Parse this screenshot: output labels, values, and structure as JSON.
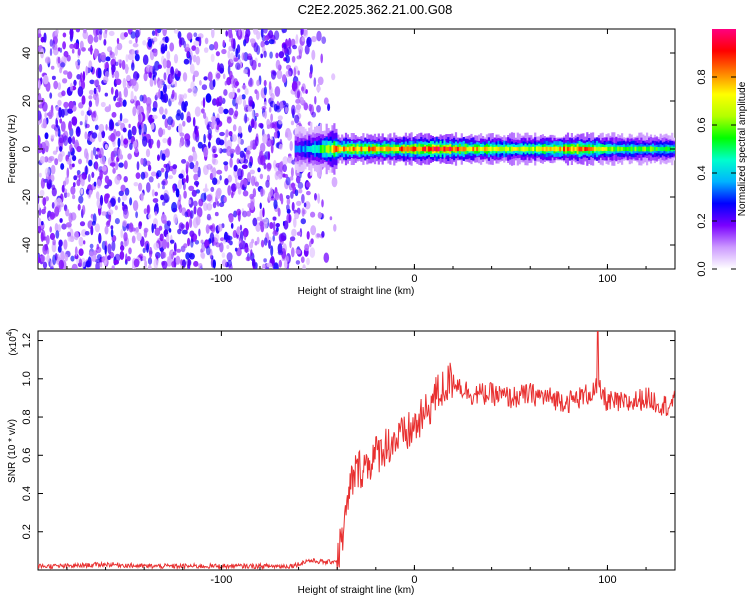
{
  "title": "C2E2.2025.362.21.00.G08",
  "chart_data": [
    {
      "type": "heatmap",
      "xlabel": "Height of straight line (km)",
      "ylabel": "Frequency (Hz)",
      "xlim": [
        -195,
        135
      ],
      "ylim": [
        -50,
        50
      ],
      "xticks": [
        -100,
        0,
        100
      ],
      "yticks": [
        -40,
        -20,
        0,
        20,
        40
      ],
      "colorbar": {
        "label": "Normalized spectral amplitude",
        "range": [
          0,
          1
        ],
        "ticks": [
          "0.0",
          "0.2",
          "0.4",
          "0.6",
          "0.8"
        ],
        "colors": [
          "#ffffff",
          "#cc99ff",
          "#7a00ff",
          "#0000ff",
          "#00b3ff",
          "#00ffcc",
          "#00ff00",
          "#b3ff00",
          "#ffff00",
          "#ff8000",
          "#ff0000",
          "#ff0080"
        ]
      },
      "noise_region_x": [
        -195,
        -50
      ],
      "signal_band": [
        {
          "x": -62,
          "amp": 0.3
        },
        {
          "x": -50,
          "amp": 0.45
        },
        {
          "x": -40,
          "amp": 0.8
        },
        {
          "x": -30,
          "amp": 0.8
        },
        {
          "x": -20,
          "amp": 0.8
        },
        {
          "x": -10,
          "amp": 0.78
        },
        {
          "x": 0,
          "amp": 0.85
        },
        {
          "x": 10,
          "amp": 0.95
        },
        {
          "x": 20,
          "amp": 0.85
        },
        {
          "x": 30,
          "amp": 0.75
        },
        {
          "x": 40,
          "amp": 0.7
        },
        {
          "x": 60,
          "amp": 0.65
        },
        {
          "x": 80,
          "amp": 0.8
        },
        {
          "x": 90,
          "amp": 0.85
        },
        {
          "x": 100,
          "amp": 0.6
        },
        {
          "x": 120,
          "amp": 0.55
        },
        {
          "x": 135,
          "amp": 0.5
        }
      ]
    },
    {
      "type": "line",
      "xlabel": "Height of straight line (km)",
      "ylabel": "SNR (10 * v/v)",
      "multiplier": "(x10",
      "multiplier_exp": "4",
      "multiplier_close": ")",
      "xlim": [
        -195,
        135
      ],
      "ylim": [
        0,
        1.25
      ],
      "xticks": [
        -100,
        0,
        100
      ],
      "yticks": [
        "0.2",
        "0.4",
        "0.6",
        "0.8",
        "1.0",
        "1.2"
      ],
      "color": "#e83030",
      "x": [
        -195,
        -180,
        -160,
        -140,
        -120,
        -100,
        -80,
        -65,
        -60,
        -55,
        -45,
        -40,
        -35,
        -33,
        -30,
        -25,
        -20,
        -15,
        -10,
        -5,
        0,
        5,
        10,
        15,
        20,
        25,
        30,
        40,
        50,
        60,
        70,
        80,
        90,
        95,
        100,
        110,
        120,
        130,
        135
      ],
      "y": [
        0.02,
        0.02,
        0.03,
        0.02,
        0.02,
        0.02,
        0.02,
        0.02,
        0.03,
        0.05,
        0.04,
        0.05,
        0.3,
        0.45,
        0.52,
        0.55,
        0.6,
        0.65,
        0.68,
        0.7,
        0.75,
        0.8,
        0.9,
        0.95,
        1.0,
        0.95,
        0.92,
        0.92,
        0.9,
        0.92,
        0.9,
        0.88,
        0.92,
        0.95,
        0.88,
        0.87,
        0.9,
        0.86,
        0.88
      ]
    }
  ]
}
